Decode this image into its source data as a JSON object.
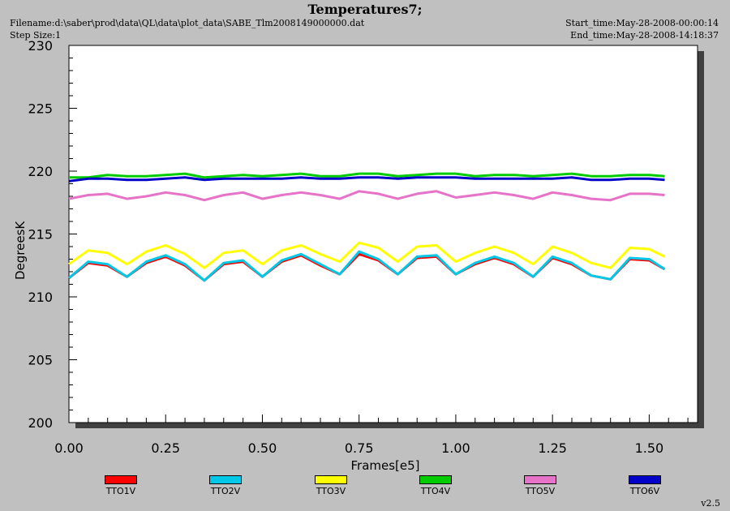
{
  "header": {
    "title": "Temperatures7;",
    "filename": "Filename:d:\\saber\\prod\\data\\QL\\data\\plot_data\\SABE_Tlm2008149000000.dat",
    "step_size": "Step Size:1",
    "start_time": "Start_time:May-28-2008-00:00:14",
    "end_time": "End_time:May-28-2008-14:18:37"
  },
  "footer": {
    "version": "v2.5"
  },
  "chart_data": {
    "type": "line",
    "xlabel": "Frames[e5]",
    "ylabel": "DegreesK",
    "xlim": [
      0,
      1.625
    ],
    "ylim": [
      200,
      230
    ],
    "xticks": [
      "0.00",
      "0.25",
      "0.50",
      "0.75",
      "1.00",
      "1.25",
      "1.50"
    ],
    "yticks": [
      "200",
      "205",
      "210",
      "215",
      "220",
      "225",
      "230"
    ],
    "grid": false,
    "legend_position": "bottom",
    "x": [
      0,
      0.05,
      0.1,
      0.15,
      0.2,
      0.25,
      0.3,
      0.35,
      0.4,
      0.45,
      0.5,
      0.55,
      0.6,
      0.65,
      0.7,
      0.75,
      0.8,
      0.85,
      0.9,
      0.95,
      1.0,
      1.05,
      1.1,
      1.15,
      1.2,
      1.25,
      1.3,
      1.35,
      1.4,
      1.45,
      1.5,
      1.54
    ],
    "series": [
      {
        "name": "TTO1V",
        "color": "#ff0000",
        "values": [
          211.5,
          212.7,
          212.5,
          211.6,
          212.7,
          213.2,
          212.5,
          211.3,
          212.6,
          212.8,
          211.6,
          212.8,
          213.3,
          212.5,
          211.8,
          213.4,
          212.9,
          211.8,
          213.1,
          213.2,
          211.8,
          212.6,
          213.1,
          212.6,
          211.6,
          213.1,
          212.6,
          211.7,
          211.4,
          213.0,
          212.9,
          212.2
        ]
      },
      {
        "name": "TTO2V",
        "color": "#00c8e6",
        "values": [
          211.5,
          212.8,
          212.6,
          211.6,
          212.8,
          213.3,
          212.6,
          211.3,
          212.7,
          212.9,
          211.6,
          212.9,
          213.4,
          212.6,
          211.8,
          213.6,
          213.0,
          211.8,
          213.2,
          213.3,
          211.8,
          212.7,
          213.2,
          212.7,
          211.6,
          213.2,
          212.7,
          211.7,
          211.4,
          213.1,
          213.0,
          212.2
        ]
      },
      {
        "name": "TTO3V",
        "color": "#ffff00",
        "values": [
          212.6,
          213.7,
          213.5,
          212.6,
          213.6,
          214.1,
          213.4,
          212.3,
          213.5,
          213.7,
          212.6,
          213.7,
          214.1,
          213.4,
          212.8,
          214.3,
          213.9,
          212.8,
          214.0,
          214.1,
          212.8,
          213.5,
          214.0,
          213.5,
          212.6,
          214.0,
          213.5,
          212.7,
          212.3,
          213.9,
          213.8,
          213.2
        ]
      },
      {
        "name": "TTO4V",
        "color": "#00cc00",
        "values": [
          219.5,
          219.5,
          219.7,
          219.6,
          219.6,
          219.7,
          219.8,
          219.5,
          219.6,
          219.7,
          219.6,
          219.7,
          219.8,
          219.6,
          219.6,
          219.8,
          219.8,
          219.6,
          219.7,
          219.8,
          219.8,
          219.6,
          219.7,
          219.7,
          219.6,
          219.7,
          219.8,
          219.6,
          219.6,
          219.7,
          219.7,
          219.6
        ]
      },
      {
        "name": "TTO5V",
        "color": "#e673c8",
        "values": [
          217.8,
          218.1,
          218.2,
          217.8,
          218.0,
          218.3,
          218.1,
          217.7,
          218.1,
          218.3,
          217.8,
          218.1,
          218.3,
          218.1,
          217.8,
          218.4,
          218.2,
          217.8,
          218.2,
          218.4,
          217.9,
          218.1,
          218.3,
          218.1,
          217.8,
          218.3,
          218.1,
          217.8,
          217.7,
          218.2,
          218.2,
          218.1
        ]
      },
      {
        "name": "TTO6V",
        "color": "#0000c8",
        "values": [
          219.2,
          219.4,
          219.4,
          219.3,
          219.3,
          219.4,
          219.5,
          219.3,
          219.4,
          219.4,
          219.4,
          219.4,
          219.5,
          219.4,
          219.4,
          219.5,
          219.5,
          219.4,
          219.5,
          219.5,
          219.5,
          219.4,
          219.4,
          219.4,
          219.4,
          219.4,
          219.5,
          219.3,
          219.3,
          219.4,
          219.4,
          219.3
        ]
      }
    ]
  }
}
